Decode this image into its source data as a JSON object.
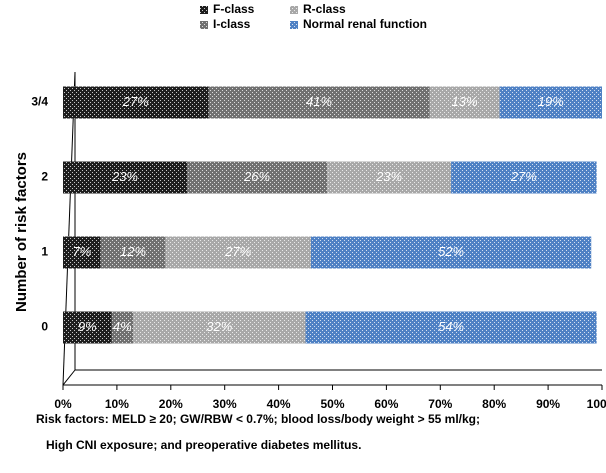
{
  "chart_data": {
    "type": "stacked-bar-horizontal",
    "y_label": "Number of risk factors",
    "categories": [
      "0",
      "1",
      "2",
      "3/4"
    ],
    "series": [
      {
        "name": "F-class",
        "color": "#1e1e1e",
        "values": [
          9,
          7,
          23,
          27
        ],
        "value_labels": [
          "9%",
          "7%",
          "23%",
          "27%"
        ]
      },
      {
        "name": "I-class",
        "color": "#707070",
        "values": [
          4,
          12,
          26,
          41
        ],
        "value_labels": [
          "4%",
          "12%",
          "26%",
          "41%"
        ]
      },
      {
        "name": "R-class",
        "color": "#a8a8a8",
        "values": [
          32,
          27,
          23,
          13
        ],
        "value_labels": [
          "32%",
          "27%",
          "23%",
          "13%"
        ]
      },
      {
        "name": "Normal renal function",
        "color": "#4f81c4",
        "values": [
          54,
          52,
          27,
          19
        ],
        "value_labels": [
          "54%",
          "52%",
          "27%",
          "19%"
        ]
      }
    ],
    "xlim": [
      0,
      100
    ],
    "xticks": [
      {
        "value": 0,
        "label": "0%"
      },
      {
        "value": 10,
        "label": "10%"
      },
      {
        "value": 20,
        "label": "20%"
      },
      {
        "value": 30,
        "label": "30%"
      },
      {
        "value": 40,
        "label": "40%"
      },
      {
        "value": 50,
        "label": "50%"
      },
      {
        "value": 60,
        "label": "60%"
      },
      {
        "value": 70,
        "label": "70%"
      },
      {
        "value": 80,
        "label": "80%"
      },
      {
        "value": 90,
        "label": "90%"
      },
      {
        "value": 100,
        "label": "100%"
      }
    ],
    "footnotes": [
      "Risk factors: MELD ≥ 20; GW/RBW < 0.7%; blood loss/body weight > 55 ml/kg;",
      "High CNI exposure; and preoperative diabetes mellitus."
    ]
  }
}
